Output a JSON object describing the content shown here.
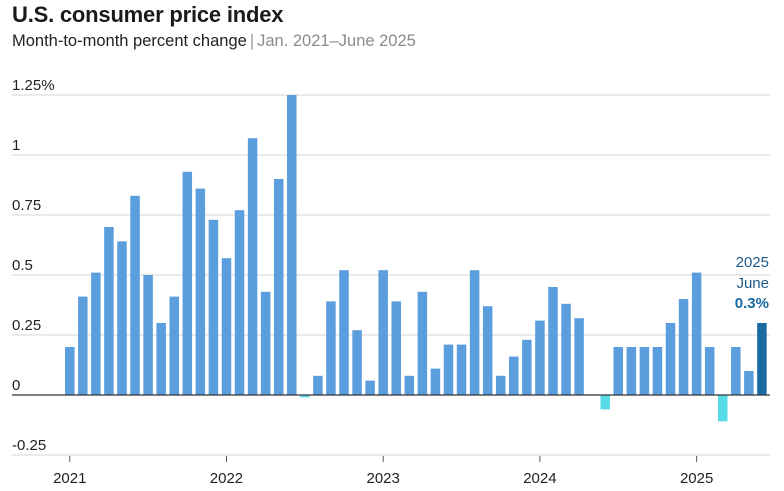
{
  "title": "U.S. consumer price index",
  "subtitle": {
    "main": "Month-to-month percent change",
    "separator": "|",
    "range": "Jan. 2021–June 2025"
  },
  "annotation": {
    "year": "2025",
    "month": "June",
    "value": "0.3%"
  },
  "colors": {
    "bar": "#5a9ede",
    "negative_bar": "#56dbe8",
    "latest_bar": "#1a6aa3",
    "annotation_text": "#1f5a8a",
    "gridline": "#d4d4d4",
    "zero_line": "#333333"
  },
  "chart_data": {
    "type": "bar",
    "title": "U.S. consumer price index",
    "subtitle": "Month-to-month percent change | Jan. 2021–June 2025",
    "ylim": [
      -0.25,
      1.25
    ],
    "y_ticks": [
      {
        "value": 1.25,
        "label": "1.25%"
      },
      {
        "value": 1.0,
        "label": "1"
      },
      {
        "value": 0.75,
        "label": "0.75"
      },
      {
        "value": 0.5,
        "label": "0.5"
      },
      {
        "value": 0.25,
        "label": "0.25"
      },
      {
        "value": 0,
        "label": "0"
      },
      {
        "value": -0.25,
        "label": "-0.25"
      }
    ],
    "x_ticks": [
      {
        "label": "2021",
        "month_index": 0
      },
      {
        "label": "2022",
        "month_index": 12
      },
      {
        "label": "2023",
        "month_index": 24
      },
      {
        "label": "2024",
        "month_index": 36
      },
      {
        "label": "2025",
        "month_index": 48
      }
    ],
    "grid": true,
    "categories": [
      "2021-01",
      "2021-02",
      "2021-03",
      "2021-04",
      "2021-05",
      "2021-06",
      "2021-07",
      "2021-08",
      "2021-09",
      "2021-10",
      "2021-11",
      "2021-12",
      "2022-01",
      "2022-02",
      "2022-03",
      "2022-04",
      "2022-05",
      "2022-06",
      "2022-07",
      "2022-08",
      "2022-09",
      "2022-10",
      "2022-11",
      "2022-12",
      "2023-01",
      "2023-02",
      "2023-03",
      "2023-04",
      "2023-05",
      "2023-06",
      "2023-07",
      "2023-08",
      "2023-09",
      "2023-10",
      "2023-11",
      "2023-12",
      "2024-01",
      "2024-02",
      "2024-03",
      "2024-04",
      "2024-05",
      "2024-06",
      "2024-07",
      "2024-08",
      "2024-09",
      "2024-10",
      "2024-11",
      "2024-12",
      "2025-01",
      "2025-02",
      "2025-03",
      "2025-04",
      "2025-05",
      "2025-06"
    ],
    "values": [
      0.2,
      0.41,
      0.51,
      0.7,
      0.64,
      0.83,
      0.5,
      0.3,
      0.41,
      0.93,
      0.86,
      0.73,
      0.57,
      0.77,
      1.07,
      0.43,
      0.9,
      1.25,
      -0.01,
      0.08,
      0.39,
      0.52,
      0.27,
      0.06,
      0.52,
      0.39,
      0.08,
      0.43,
      0.11,
      0.21,
      0.21,
      0.52,
      0.37,
      0.08,
      0.16,
      0.23,
      0.31,
      0.45,
      0.38,
      0.32,
      0.0,
      -0.06,
      0.2,
      0.2,
      0.2,
      0.2,
      0.3,
      0.4,
      0.51,
      0.2,
      -0.11,
      0.2,
      0.1,
      0.3
    ],
    "highlight_index": 53
  }
}
